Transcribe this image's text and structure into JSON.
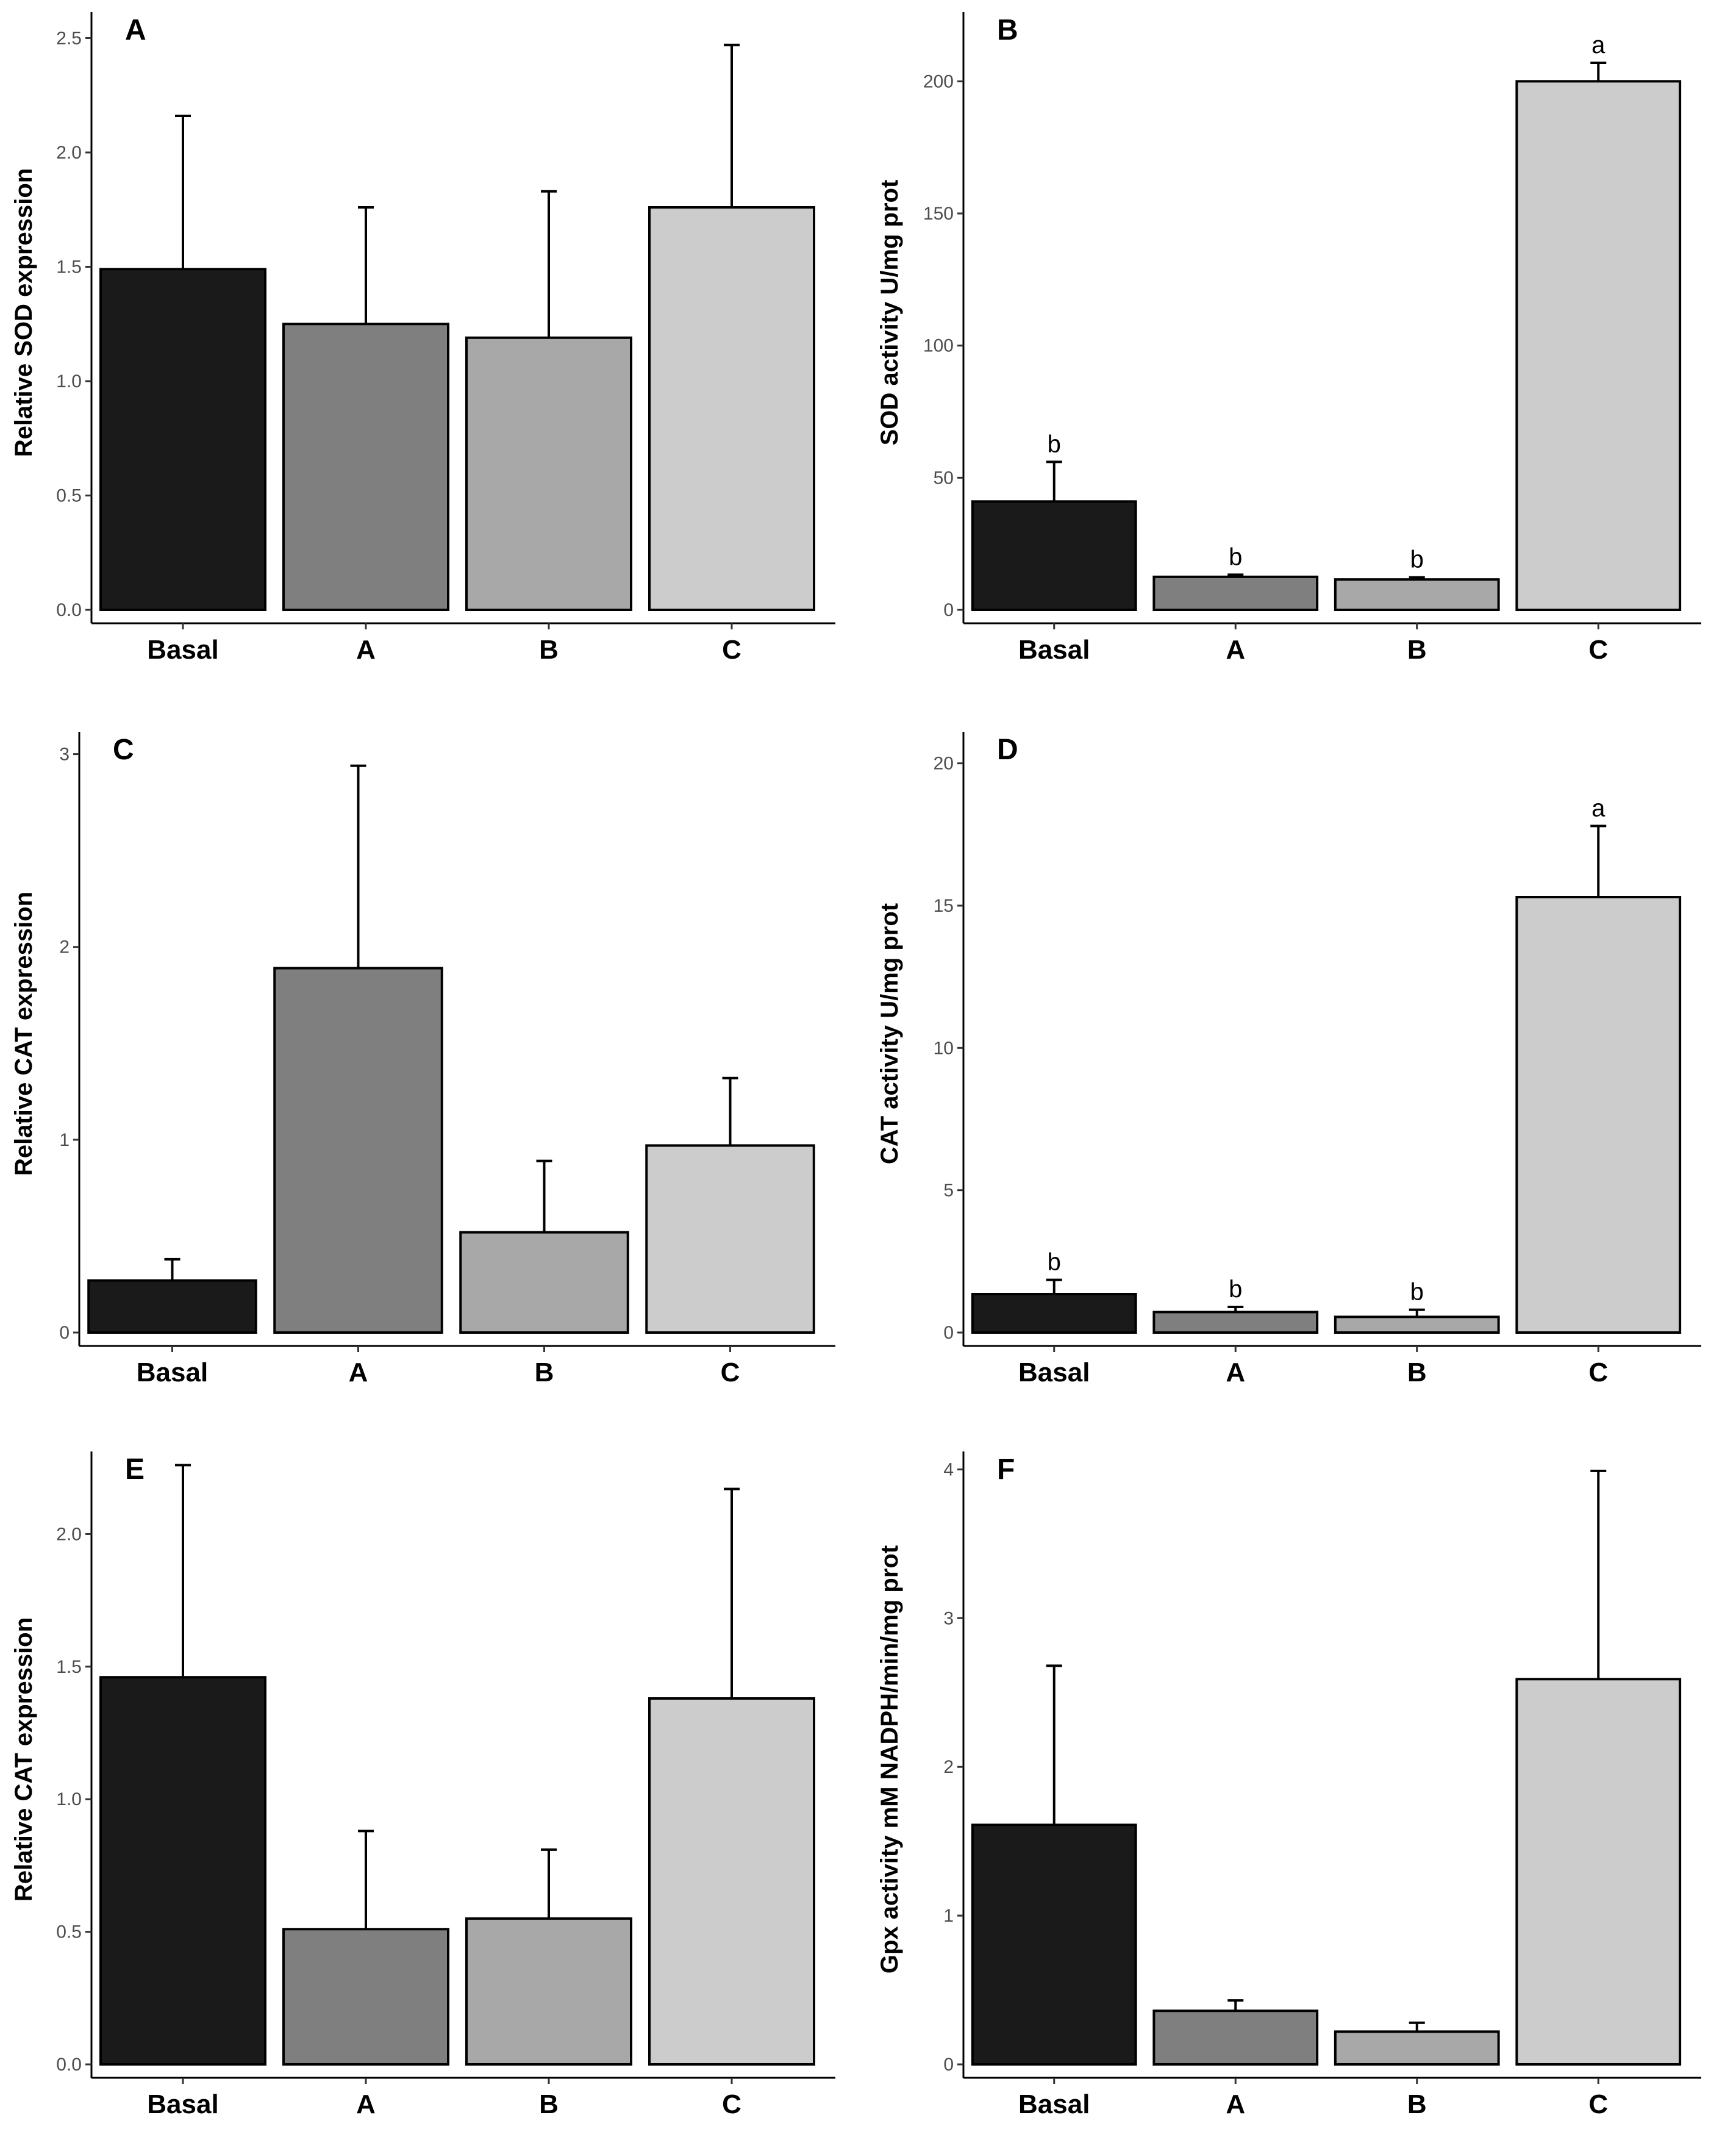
{
  "colors": {
    "Basal": "#1a1a1a",
    "A": "#7f7f7f",
    "B": "#a8a8a8",
    "C": "#cccccc",
    "axis": "#000000",
    "tick_text": "#4d4d4d"
  },
  "chart_data": [
    {
      "type": "bar",
      "panel_label": "A",
      "ylabel": "Relative SOD expression",
      "categories": [
        "Basal",
        "A",
        "B",
        "C"
      ],
      "values": [
        1.49,
        1.25,
        1.19,
        1.76
      ],
      "errors": [
        0.67,
        0.51,
        0.64,
        0.71
      ],
      "sig_labels": [
        "",
        "",
        "",
        ""
      ],
      "ylim": [
        0,
        2.6
      ],
      "yticks": [
        0.0,
        0.5,
        1.0,
        1.5,
        2.0,
        2.5
      ],
      "ytick_labels": [
        "0.0",
        "0.5",
        "1.0",
        "1.5",
        "2.0",
        "2.5"
      ]
    },
    {
      "type": "bar",
      "panel_label": "B",
      "ylabel": "SOD activity U/mg prot",
      "categories": [
        "Basal",
        "A",
        "B",
        "C"
      ],
      "values": [
        41,
        12.5,
        11.5,
        200
      ],
      "errors": [
        15,
        0.8,
        0.8,
        7
      ],
      "sig_labels": [
        "b",
        "b",
        "b",
        "a"
      ],
      "ylim": [
        0,
        225
      ],
      "yticks": [
        0,
        50,
        100,
        150,
        200
      ],
      "ytick_labels": [
        "0",
        "50",
        "100",
        "150",
        "200"
      ]
    },
    {
      "type": "bar",
      "panel_label": "C",
      "ylabel": "Relative CAT expression",
      "categories": [
        "Basal",
        "A",
        "B",
        "C"
      ],
      "values": [
        0.27,
        1.89,
        0.52,
        0.97
      ],
      "errors": [
        0.11,
        1.05,
        0.37,
        0.35
      ],
      "sig_labels": [
        "",
        "",
        "",
        ""
      ],
      "ylim": [
        0,
        3.1
      ],
      "yticks": [
        0,
        1,
        2,
        3
      ],
      "ytick_labels": [
        "0",
        "1",
        "2",
        "3"
      ]
    },
    {
      "type": "bar",
      "panel_label": "D",
      "ylabel": "CAT activity U/mg prot",
      "categories": [
        "Basal",
        "A",
        "B",
        "C"
      ],
      "values": [
        1.35,
        0.72,
        0.55,
        15.3
      ],
      "errors": [
        0.5,
        0.18,
        0.25,
        2.5
      ],
      "sig_labels": [
        "b",
        "b",
        "b",
        "a"
      ],
      "ylim": [
        0,
        21
      ],
      "yticks": [
        0,
        5,
        10,
        15,
        20
      ],
      "ytick_labels": [
        "0",
        "5",
        "10",
        "15",
        "20"
      ]
    },
    {
      "type": "bar",
      "panel_label": "E",
      "ylabel": "Relative CAT expression",
      "categories": [
        "Basal",
        "A",
        "B",
        "C"
      ],
      "values": [
        1.46,
        0.51,
        0.55,
        1.38
      ],
      "errors": [
        0.8,
        0.37,
        0.26,
        0.79
      ],
      "sig_labels": [
        "",
        "",
        "",
        ""
      ],
      "ylim": [
        0,
        2.3
      ],
      "yticks": [
        0.0,
        0.5,
        1.0,
        1.5,
        2.0
      ],
      "ytick_labels": [
        "0.0",
        "0.5",
        "1.0",
        "1.5",
        "2.0"
      ]
    },
    {
      "type": "bar",
      "panel_label": "F",
      "ylabel": "Gpx activity mM NADPH/min/mg prot",
      "categories": [
        "Basal",
        "A",
        "B",
        "C"
      ],
      "values": [
        1.61,
        0.36,
        0.22,
        2.59
      ],
      "errors": [
        1.07,
        0.07,
        0.06,
        1.4
      ],
      "sig_labels": [
        "",
        "",
        "",
        ""
      ],
      "ylim": [
        0,
        4.1
      ],
      "yticks": [
        0,
        1,
        2,
        3,
        4
      ],
      "ytick_labels": [
        "0",
        "1",
        "2",
        "3",
        "4"
      ]
    }
  ]
}
